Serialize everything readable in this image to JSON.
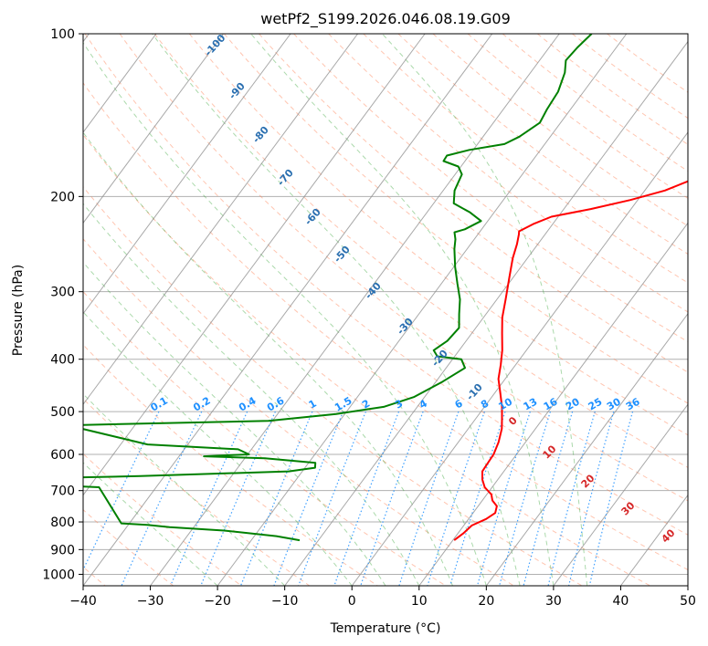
{
  "chart_data": {
    "type": "line",
    "title": "wetPf2_S199.2026.046.08.19.G09",
    "xlabel": "Temperature (°C)",
    "ylabel": "Pressure (hPa)",
    "xlim": [
      -40,
      50
    ],
    "ylim": [
      1050,
      100
    ],
    "y_scale": "log",
    "x_ticks": [
      -40,
      -30,
      -20,
      -10,
      0,
      10,
      20,
      30,
      40,
      50
    ],
    "y_ticks": [
      100,
      200,
      300,
      400,
      500,
      600,
      700,
      800,
      900,
      1000
    ],
    "grid": true,
    "skew": "skew-T log-P",
    "series": [
      {
        "role": "temperature",
        "color": "#ff0000",
        "points": [
          [
            10.2,
            865
          ],
          [
            10.8,
            840
          ],
          [
            11.2,
            812
          ],
          [
            12.6,
            790
          ],
          [
            13.3,
            770
          ],
          [
            12.8,
            748
          ],
          [
            11.5,
            730
          ],
          [
            10.7,
            712
          ],
          [
            8.9,
            690
          ],
          [
            7.7,
            668
          ],
          [
            6.8,
            645
          ],
          [
            6.7,
            625
          ],
          [
            6.6,
            600
          ],
          [
            6.0,
            570
          ],
          [
            5.0,
            538
          ],
          [
            3.9,
            515
          ],
          [
            2.6,
            490
          ],
          [
            0.7,
            460
          ],
          [
            -1.0,
            435
          ],
          [
            -2.2,
            410
          ],
          [
            -3.6,
            385
          ],
          [
            -5.5,
            358
          ],
          [
            -7.2,
            335
          ],
          [
            -8.7,
            310
          ],
          [
            -10.6,
            282
          ],
          [
            -12.2,
            260
          ],
          [
            -13.1,
            245
          ],
          [
            -13.9,
            235
          ],
          [
            -14.2,
            232
          ],
          [
            -12.9,
            225
          ],
          [
            -11.0,
            218
          ],
          [
            -6.0,
            211
          ],
          [
            -1.1,
            203
          ],
          [
            3.0,
            195
          ],
          [
            6.2,
            185
          ],
          [
            9.3,
            172
          ],
          [
            12.3,
            160
          ],
          [
            14.0,
            151
          ],
          [
            17.9,
            140
          ],
          [
            22.1,
            131
          ],
          [
            25.1,
            124
          ],
          [
            28.1,
            116
          ],
          [
            29.9,
            110
          ],
          [
            31.4,
            106
          ],
          [
            32.4,
            103
          ],
          [
            33.3,
            100
          ]
        ]
      },
      {
        "role": "dewpoint",
        "color": "#008000",
        "points": [
          [
            -12.8,
            865
          ],
          [
            -16.7,
            850
          ],
          [
            -25.1,
            830
          ],
          [
            -33.6,
            818
          ],
          [
            -37.2,
            810
          ],
          [
            -41.2,
            805
          ],
          [
            -48.5,
            690
          ],
          [
            -55.6,
            684
          ],
          [
            -60.0,
            682
          ],
          [
            -77.7,
            670
          ],
          [
            -60.0,
            665
          ],
          [
            -43.6,
            658
          ],
          [
            -22.0,
            645
          ],
          [
            -18.5,
            635
          ],
          [
            -19.0,
            622
          ],
          [
            -27.0,
            610
          ],
          [
            -36.3,
            605
          ],
          [
            -29.8,
            600
          ],
          [
            -32.0,
            587
          ],
          [
            -46.0,
            575
          ],
          [
            -60.0,
            530
          ],
          [
            -30.6,
            520
          ],
          [
            -21.3,
            505
          ],
          [
            -15.0,
            490
          ],
          [
            -11.6,
            470
          ],
          [
            -9.0,
            440
          ],
          [
            -7.2,
            415
          ],
          [
            -8.7,
            400
          ],
          [
            -12.6,
            395
          ],
          [
            -13.8,
            385
          ],
          [
            -12.8,
            370
          ],
          [
            -12.5,
            350
          ],
          [
            -14.0,
            330
          ],
          [
            -15.5,
            310
          ],
          [
            -17.6,
            290
          ],
          [
            -19.8,
            270
          ],
          [
            -21.9,
            250
          ],
          [
            -22.8,
            240
          ],
          [
            -23.7,
            233
          ],
          [
            -22.5,
            230
          ],
          [
            -21.0,
            222
          ],
          [
            -23.6,
            214
          ],
          [
            -27.0,
            206
          ],
          [
            -28.3,
            195
          ],
          [
            -29.0,
            182
          ],
          [
            -30.4,
            176
          ],
          [
            -33.2,
            172
          ],
          [
            -33.3,
            168
          ],
          [
            -30.6,
            164
          ],
          [
            -26.0,
            160
          ],
          [
            -24.6,
            155
          ],
          [
            -23.1,
            146
          ],
          [
            -23.5,
            138
          ],
          [
            -23.8,
            128
          ],
          [
            -24.9,
            118
          ],
          [
            -26.1,
            112
          ],
          [
            -25.8,
            106
          ],
          [
            -25.2,
            100
          ]
        ]
      }
    ],
    "isotherms_c": [
      -110,
      -100,
      -90,
      -80,
      -70,
      -60,
      -50,
      -40,
      -30,
      -20,
      -10,
      0,
      10,
      20,
      30,
      40,
      50
    ],
    "dry_adiabats_c": [
      -40,
      -30,
      -20,
      -10,
      0,
      10,
      20,
      30,
      40,
      50,
      60,
      70,
      80,
      90,
      100,
      110,
      120,
      130,
      140,
      150,
      160,
      170,
      180,
      190,
      200,
      210
    ],
    "moist_adiabats_c": [
      -20,
      -10,
      0,
      5,
      10,
      15,
      20,
      25,
      30,
      35
    ],
    "moist_adiabat_labels": [
      "-100",
      "-90",
      "-80",
      "-70",
      "-60",
      "-50",
      "-40",
      "-30",
      "-20",
      "-10"
    ],
    "mixing_ratios_gkg": [
      0.1,
      0.2,
      0.4,
      0.6,
      1,
      1.5,
      2,
      3,
      4,
      6,
      8,
      10,
      13,
      16,
      20,
      25,
      30,
      36
    ],
    "mixing_ratio_labels": [
      "0.1",
      "0.2",
      "0.4",
      "0.6",
      "1",
      "1.5",
      "2",
      "3",
      "4",
      "6",
      "8",
      "10",
      "13",
      "16",
      "20",
      "25",
      "30",
      "36"
    ],
    "dry_labels": [
      "0",
      "10",
      "20",
      "30",
      "40"
    ],
    "dry_label_values": [
      0,
      10,
      20,
      30,
      40
    ]
  },
  "colors": {
    "temperature": "#ff0000",
    "dewpoint": "#008000",
    "mixing_ratio": "#1e90ff",
    "moist_adiabat": "#2ca02c",
    "dry_adiabat": "#ff7f50",
    "isotherm": "#808080",
    "label_blue": "#2a6fb0",
    "label_red": "#d62728"
  }
}
